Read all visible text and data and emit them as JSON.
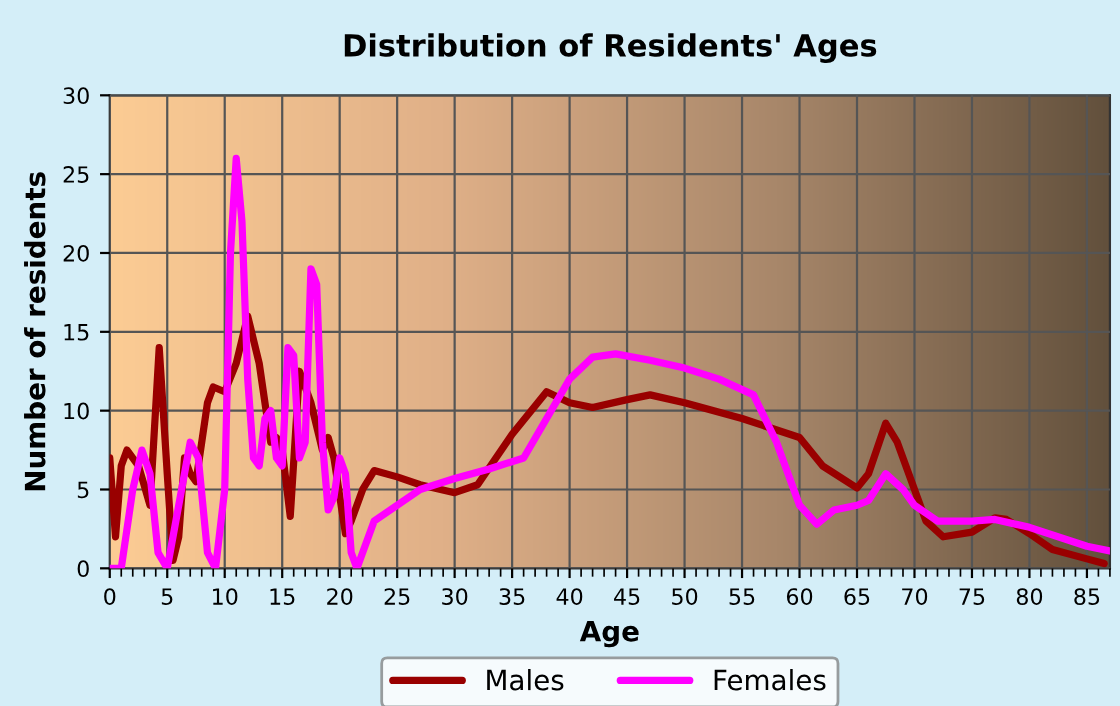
{
  "chart_data": {
    "type": "line",
    "title": "Distribution of Residents' Ages",
    "xlabel": "Age",
    "ylabel": "Number of residents",
    "xlim": [
      0,
      87
    ],
    "ylim": [
      0,
      30
    ],
    "xticks": [
      0,
      5,
      10,
      15,
      20,
      25,
      30,
      35,
      40,
      45,
      50,
      55,
      60,
      65,
      70,
      75,
      80,
      85
    ],
    "yticks": [
      0,
      5,
      10,
      15,
      20,
      25,
      30
    ],
    "grid": true,
    "legend": "bottom",
    "series": [
      {
        "name": "Males",
        "color": "#990000",
        "x": [
          0,
          0.5,
          1,
          1.5,
          2.5,
          3.5,
          4.3,
          5,
          5.5,
          6,
          6.5,
          7,
          7.5,
          8.5,
          9,
          10,
          11,
          12,
          13,
          14,
          14.5,
          15,
          15.7,
          16.5,
          17.5,
          18.5,
          19,
          19.5,
          20.5,
          21,
          22,
          23,
          25,
          27,
          30,
          32,
          35,
          38,
          40,
          42,
          45,
          47,
          50,
          55,
          60,
          62,
          65,
          66,
          67.5,
          68.5,
          70,
          71,
          72.5,
          75,
          77,
          78,
          80,
          82,
          85,
          86.5
        ],
        "values": [
          7,
          2,
          6.5,
          7.5,
          6.5,
          4,
          14,
          6,
          0.5,
          2,
          7,
          6,
          5.5,
          10.5,
          11.5,
          11.2,
          13,
          16,
          13,
          8,
          8.3,
          7.5,
          3.3,
          12.5,
          10.5,
          7.5,
          8.3,
          7,
          2.2,
          3,
          5,
          6.2,
          5.8,
          5.3,
          4.8,
          5.3,
          8.5,
          11.2,
          10.5,
          10.2,
          10.7,
          11,
          10.5,
          9.5,
          8.3,
          6.5,
          5.1,
          6,
          9.2,
          8,
          5,
          3,
          2,
          2.3,
          3.2,
          3.1,
          2.2,
          1.2,
          0.6,
          0.3
        ]
      },
      {
        "name": "Females",
        "color": "#ff00ff",
        "x": [
          0,
          1,
          2,
          2.8,
          3.5,
          4.2,
          5,
          6,
          7,
          7.7,
          8.5,
          9.2,
          10,
          10.5,
          11,
          11.5,
          12,
          12.5,
          13,
          13.5,
          14,
          14.5,
          15,
          15.5,
          16,
          16.5,
          17,
          17.5,
          18,
          18.5,
          19,
          19.5,
          20,
          20.5,
          21,
          21.5,
          22,
          23,
          25,
          27,
          30,
          33,
          36,
          38,
          40,
          42,
          44,
          47,
          50,
          53,
          56,
          58,
          60,
          61.5,
          63,
          65,
          66,
          67.5,
          69,
          70,
          72,
          75,
          77,
          80,
          85,
          87
        ],
        "values": [
          0,
          0,
          5,
          7.5,
          6,
          1,
          0,
          4,
          8,
          7,
          1,
          0,
          5,
          20,
          26,
          22,
          12,
          7,
          6.5,
          9.5,
          10,
          7,
          6.5,
          14,
          13.5,
          7,
          8,
          19,
          18,
          8,
          3.7,
          4.5,
          7,
          6,
          1,
          0,
          1,
          3,
          4,
          5,
          5.7,
          6.3,
          7,
          9.5,
          12,
          13.4,
          13.6,
          13.2,
          12.7,
          12,
          11,
          8,
          4,
          2.8,
          3.7,
          4,
          4.3,
          6,
          5,
          4,
          3,
          3,
          3.1,
          2.6,
          1.4,
          1.1
        ]
      }
    ]
  }
}
